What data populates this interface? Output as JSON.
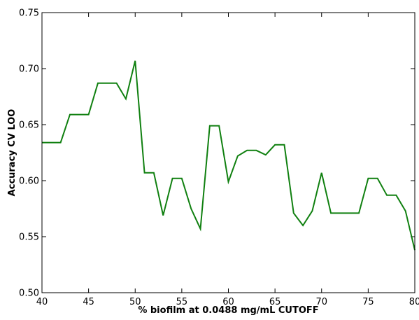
{
  "chart_data": {
    "type": "line",
    "title": "",
    "xlabel": "% biofilm at 0.0488 mg/mL CUTOFF",
    "ylabel": "Accuracy CV LOO",
    "xlim": [
      40,
      80
    ],
    "ylim": [
      0.5,
      0.75
    ],
    "x_ticks": [
      40,
      45,
      50,
      55,
      60,
      65,
      70,
      75,
      80
    ],
    "x_tick_labels": [
      "40",
      "45",
      "50",
      "55",
      "60",
      "65",
      "70",
      "75",
      "80"
    ],
    "y_ticks": [
      0.5,
      0.55,
      0.6,
      0.65,
      0.7,
      0.75
    ],
    "y_tick_labels": [
      "0.50",
      "0.55",
      "0.60",
      "0.65",
      "0.70",
      "0.75"
    ],
    "grid": false,
    "series": [
      {
        "color": "#108010",
        "x": [
          40,
          41,
          42,
          43,
          44,
          45,
          46,
          47,
          48,
          49,
          50,
          51,
          52,
          53,
          54,
          55,
          56,
          57,
          58,
          59,
          60,
          61,
          62,
          63,
          64,
          65,
          66,
          67,
          68,
          69,
          70,
          71,
          72,
          73,
          74,
          75,
          76,
          77,
          78,
          79,
          80
        ],
        "y": [
          0.634,
          0.634,
          0.634,
          0.659,
          0.659,
          0.659,
          0.687,
          0.687,
          0.687,
          0.673,
          0.707,
          0.607,
          0.607,
          0.569,
          0.602,
          0.602,
          0.575,
          0.557,
          0.649,
          0.649,
          0.599,
          0.622,
          0.627,
          0.627,
          0.623,
          0.632,
          0.632,
          0.571,
          0.56,
          0.573,
          0.607,
          0.571,
          0.571,
          0.571,
          0.571,
          0.602,
          0.602,
          0.587,
          0.587,
          0.573,
          0.538
        ]
      }
    ]
  }
}
